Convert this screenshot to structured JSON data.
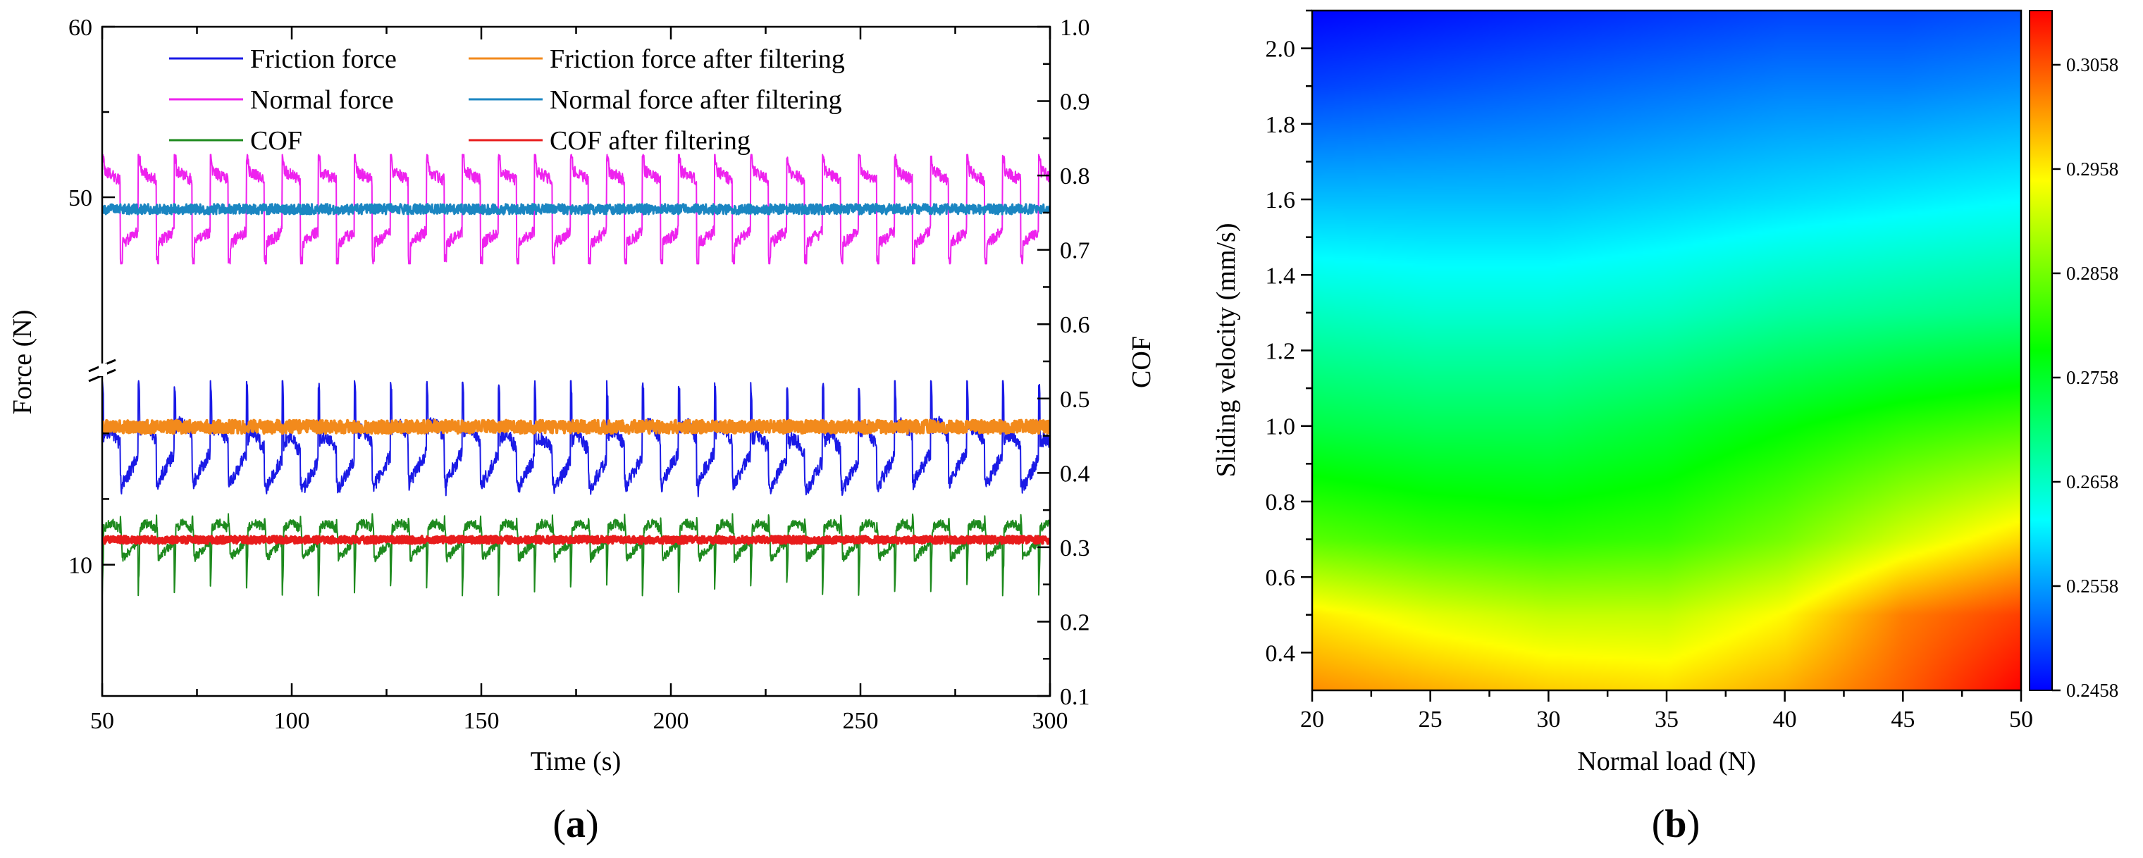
{
  "panels": [
    {
      "label": "(a)",
      "label_letter": "a"
    },
    {
      "label": "(b)",
      "label_letter": "b"
    }
  ],
  "chart_data": [
    {
      "type": "line",
      "panel": "(a)",
      "xlabel": "Time (s)",
      "ylabel": "Force (N)",
      "y2label": "COF",
      "xlim": [
        50,
        300
      ],
      "xticks": [
        50,
        100,
        150,
        200,
        250,
        300
      ],
      "y_axis_break": true,
      "y_lower_segment": {
        "range": [
          0,
          25
        ],
        "ticks": [
          10
        ]
      },
      "y_upper_segment": {
        "range": [
          40,
          60
        ],
        "ticks": [
          50,
          60
        ]
      },
      "y2lim": [
        0.1,
        1.0
      ],
      "y2ticks": [
        0.1,
        0.2,
        0.3,
        0.4,
        0.5,
        0.6,
        0.7,
        0.8,
        0.9,
        1.0
      ],
      "grid": false,
      "legend_position": "top",
      "series": [
        {
          "name": "Friction force",
          "axis": "left",
          "color": "#1a1ae6",
          "style": "oscillating",
          "period_s": 9.5,
          "baseline": 19.0,
          "amplitude_range": [
            13.6,
            24.0
          ]
        },
        {
          "name": "Friction force after filtering",
          "axis": "left",
          "color": "#f28a1c",
          "style": "flat-noisy",
          "mean": 20.5,
          "noise_band": 0.5
        },
        {
          "name": "Normal force",
          "axis": "left",
          "color": "#ee22ee",
          "style": "square-wave",
          "period_s": 9.5,
          "high": 51.0,
          "low": 47.3,
          "range": [
            46.1,
            52.5
          ]
        },
        {
          "name": "Normal force after filtering",
          "axis": "left",
          "color": "#1b86c2",
          "style": "flat-noisy",
          "mean": 49.3,
          "noise_band": 0.3
        },
        {
          "name": "COF",
          "axis": "right",
          "color": "#1e8a1e",
          "style": "oscillating",
          "period_s": 9.5,
          "baseline": 0.3,
          "range": [
            0.235,
            0.345
          ]
        },
        {
          "name": "COF after filtering",
          "axis": "right",
          "color": "#e81c1c",
          "style": "flat-noisy",
          "mean": 0.31,
          "noise_band": 0.005
        }
      ]
    },
    {
      "type": "heatmap",
      "panel": "(b)",
      "xlabel": "Normal load (N)",
      "ylabel": "Sliding velocity (mm/s)",
      "xlim": [
        20,
        50
      ],
      "xticks": [
        20,
        25,
        30,
        35,
        40,
        45,
        50
      ],
      "ylim": [
        0.3,
        2.1
      ],
      "yticks": [
        "0.4",
        "0.6",
        "0.8",
        "1.0",
        "1.2",
        "1.4",
        "1.6",
        "1.8",
        "2.0"
      ],
      "colorbar": {
        "min": 0.2458,
        "max": 0.311,
        "ticks": [
          "0.2458",
          "0.2558",
          "0.2658",
          "0.2758",
          "0.2858",
          "0.2958",
          "0.3058"
        ],
        "colormap": [
          "#0000ff",
          "#00ffff",
          "#00ff00",
          "#ffff00",
          "#ff0000"
        ]
      },
      "z_profile": [
        {
          "v": 0.3,
          "cof": [
            0.302,
            0.3,
            0.298,
            0.297,
            0.3,
            0.305,
            0.311
          ]
        },
        {
          "v": 0.5,
          "cof": [
            0.296,
            0.293,
            0.291,
            0.291,
            0.295,
            0.303,
            0.307
          ]
        },
        {
          "v": 0.7,
          "cof": [
            0.284,
            0.282,
            0.281,
            0.282,
            0.286,
            0.292,
            0.297
          ]
        },
        {
          "v": 1.0,
          "cof": [
            0.274,
            0.273,
            0.273,
            0.275,
            0.278,
            0.281,
            0.283
          ]
        },
        {
          "v": 1.3,
          "cof": [
            0.266,
            0.265,
            0.265,
            0.266,
            0.268,
            0.269,
            0.27
          ]
        },
        {
          "v": 1.6,
          "cof": [
            0.258,
            0.258,
            0.258,
            0.259,
            0.26,
            0.261,
            0.262
          ]
        },
        {
          "v": 1.9,
          "cof": [
            0.25,
            0.251,
            0.252,
            0.253,
            0.254,
            0.254,
            0.255
          ]
        },
        {
          "v": 2.1,
          "cof": [
            0.246,
            0.247,
            0.248,
            0.249,
            0.25,
            0.25,
            0.251
          ]
        }
      ]
    }
  ]
}
